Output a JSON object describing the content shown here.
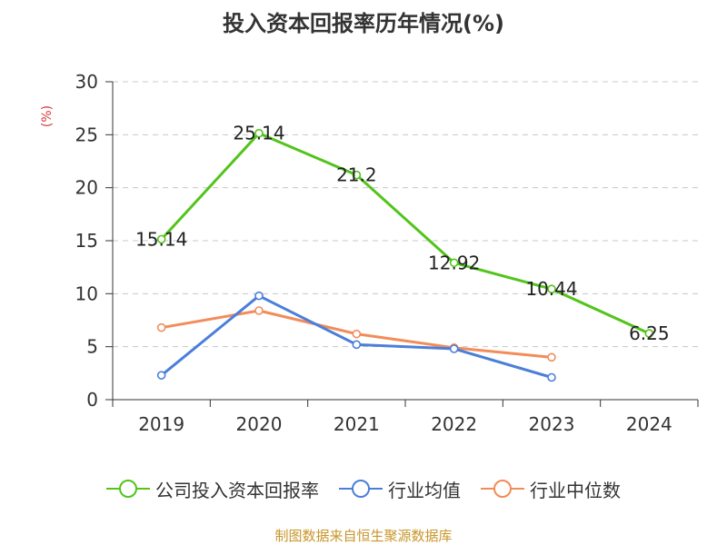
{
  "chart_data": {
    "type": "line",
    "title": "投入资本回报率历年情况(%)",
    "ylabel": "(%)",
    "xlabel": "",
    "categories": [
      "2019",
      "2020",
      "2021",
      "2022",
      "2023",
      "2024"
    ],
    "ylim": [
      0,
      30
    ],
    "yticks": [
      0,
      5,
      10,
      15,
      20,
      25,
      30
    ],
    "grid": true,
    "legend_position": "bottom",
    "series": [
      {
        "name": "公司投入资本回报率",
        "color": "#52c41a",
        "values": [
          15.14,
          25.14,
          21.2,
          12.92,
          10.44,
          6.25
        ],
        "labels": [
          "15.14",
          "25.14",
          "21.2",
          "12.92",
          "10.44",
          "6.25"
        ]
      },
      {
        "name": "行业均值",
        "color": "#4a7fd9",
        "values": [
          2.3,
          9.8,
          5.2,
          4.8,
          2.1,
          null
        ]
      },
      {
        "name": "行业中位数",
        "color": "#f28c5a",
        "values": [
          6.8,
          8.4,
          6.2,
          4.9,
          4.0,
          null
        ]
      }
    ]
  },
  "source": "制图数据来自恒生聚源数据库"
}
